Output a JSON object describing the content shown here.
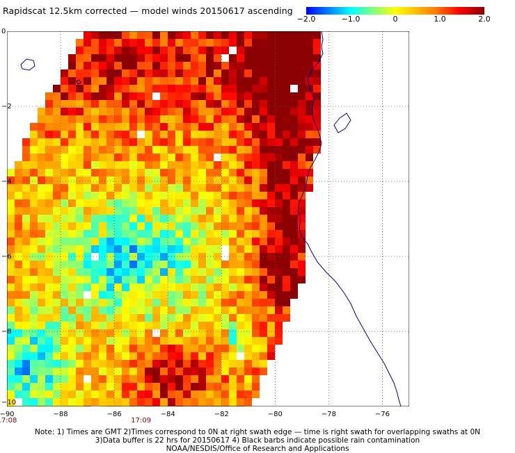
{
  "title": "Rapidscat 12.5km corrected — model winds 20150617 ascending",
  "colorbar": {
    "ticks": [
      {
        "value": -2.0,
        "label": "−2.0"
      },
      {
        "value": -1.0,
        "label": "−1.0"
      },
      {
        "value": 0,
        "label": "0"
      },
      {
        "value": 1.0,
        "label": "1.0"
      },
      {
        "value": 2.0,
        "label": "2.0"
      }
    ],
    "colors": [
      "#0000ff",
      "#00ffff",
      "#ffff00",
      "#ff8000",
      "#ff0000",
      "#8b0000"
    ]
  },
  "map": {
    "lon_range": [
      -90,
      -75
    ],
    "lat_range": [
      -10,
      0
    ],
    "lat_ticks": [
      {
        "value": 0,
        "label": "0"
      },
      {
        "value": -2,
        "label": "−2"
      },
      {
        "value": -4,
        "label": "−4"
      },
      {
        "value": -6,
        "label": "−6"
      },
      {
        "value": -8,
        "label": "−8"
      },
      {
        "value": -10,
        "label": "−10"
      }
    ],
    "lon_ticks": [
      {
        "value": -90,
        "label": "−90"
      },
      {
        "value": -88,
        "label": "−88"
      },
      {
        "value": -86,
        "label": "−86"
      },
      {
        "value": -84,
        "label": "−84"
      },
      {
        "value": -82,
        "label": "−82"
      },
      {
        "value": -80,
        "label": "−80"
      },
      {
        "value": -78,
        "label": "−78"
      },
      {
        "value": -76,
        "label": "−76"
      }
    ],
    "time_labels": [
      {
        "lon": -90,
        "label": "17:08"
      },
      {
        "lon": -85,
        "label": "17:09"
      }
    ],
    "grid": true,
    "coastline_color": "#00008b"
  },
  "notes": [
    "Note: 1) Times are GMT 2)Times correspond to 0N at right swath edge — time is right swath for overlapping swaths at 0N",
    "3)Data buffer is 22 hrs for 20150617 4) Black barbs indicate possible rain contamination",
    "NOAA/NESDIS/Office of Research and Applications"
  ]
}
